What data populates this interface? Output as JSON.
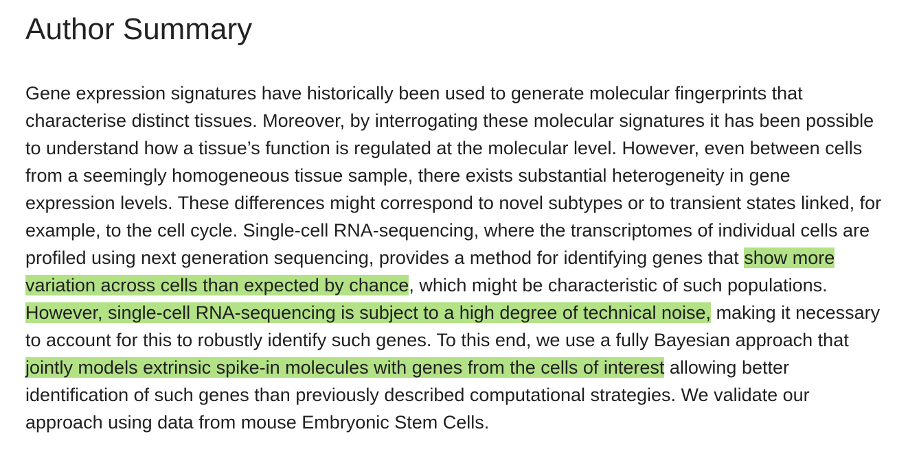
{
  "summary": {
    "title": "Author Summary",
    "segments": {
      "s1": "Gene expression signatures have historically been used to generate molecular fingerprints that characterise distinct tissues. Moreover, by interrogating these molecular signatures it has been possible to understand how a tissue’s function is regulated at the molecular level. However, even between cells from a seemingly homogeneous tissue sample, there exists substantial heterogeneity in gene expression levels. These differences might correspond to novel subtypes or to transient states linked, for example, to the cell cycle. Single-cell RNA-sequencing, where the transcriptomes of individual cells are profiled using next generation sequencing, provides a method for identifying genes that ",
      "h1": "show more variation across cells than expected by chance",
      "s2": ", which might be characteristic of such populations. ",
      "h2": "However, single-cell RNA-sequencing is subject to a high degree of technical noise,",
      "s3": " making it necessary to account for this to robustly identify such genes. To this end, we use a fully Bayesian approach that ",
      "h3": "jointly models extrinsic spike-in molecules with genes from the cells of interest",
      "s4": " allowing better identification of such genes than previously described computational strategies. We validate our approach using data from mouse Embryonic Stem Cells."
    },
    "highlight_color": "#b3e286"
  }
}
